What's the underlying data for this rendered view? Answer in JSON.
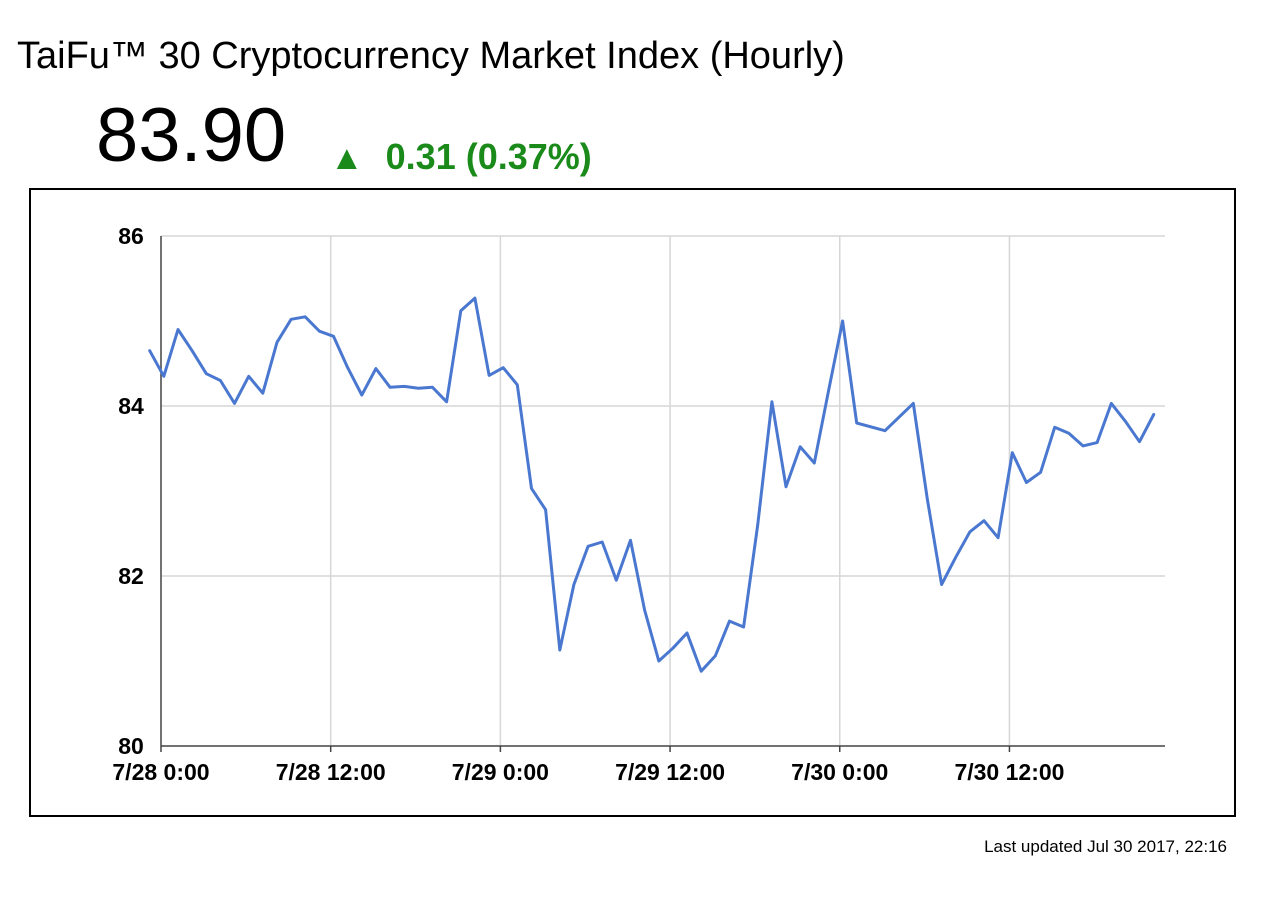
{
  "header": {
    "title": "TaiFu™ 30 Cryptocurrency Market Index (Hourly)",
    "price": "83.90",
    "change_arrow": "▲",
    "change_text": "0.31 (0.37%)",
    "change_color": "#1a8a1a"
  },
  "footer": {
    "last_updated": "Last updated Jul 30 2017, 22:16"
  },
  "colors": {
    "line": "#4a78d0",
    "grid": "#d6d6d6",
    "axis": "#444444"
  },
  "chart_data": {
    "type": "line",
    "title": "",
    "xlabel": "",
    "ylabel": "",
    "ylim": [
      80,
      86
    ],
    "yticks": [
      80,
      82,
      84,
      86
    ],
    "xlim_hours": [
      0,
      71
    ],
    "xticks": [
      {
        "hour": 0,
        "label": "7/28 0:00"
      },
      {
        "hour": 12,
        "label": "7/28 12:00"
      },
      {
        "hour": 24,
        "label": "7/29 0:00"
      },
      {
        "hour": 36,
        "label": "7/29 12:00"
      },
      {
        "hour": 48,
        "label": "7/30 0:00"
      },
      {
        "hour": 60,
        "label": "7/30 12:00"
      }
    ],
    "grid": true,
    "legend": "none",
    "series": [
      {
        "points": [
          [
            -0.8,
            84.65
          ],
          [
            0.2,
            84.35
          ],
          [
            1.2,
            84.9
          ],
          [
            2.2,
            84.65
          ],
          [
            3.2,
            84.38
          ],
          [
            4.2,
            84.3
          ],
          [
            5.2,
            84.03
          ],
          [
            6.2,
            84.35
          ],
          [
            7.2,
            84.15
          ],
          [
            8.2,
            84.75
          ],
          [
            9.2,
            85.02
          ],
          [
            10.2,
            85.05
          ],
          [
            11.2,
            84.88
          ],
          [
            12.2,
            84.82
          ],
          [
            13.2,
            84.45
          ],
          [
            14.2,
            84.13
          ],
          [
            15.2,
            84.44
          ],
          [
            16.2,
            84.22
          ],
          [
            17.2,
            84.23
          ],
          [
            18.2,
            84.21
          ],
          [
            19.2,
            84.22
          ],
          [
            20.2,
            84.05
          ],
          [
            21.2,
            85.12
          ],
          [
            22.2,
            85.27
          ],
          [
            23.2,
            84.36
          ],
          [
            24.2,
            84.45
          ],
          [
            25.2,
            84.25
          ],
          [
            26.2,
            83.03
          ],
          [
            27.2,
            82.78
          ],
          [
            28.2,
            81.13
          ],
          [
            29.2,
            81.9
          ],
          [
            30.2,
            82.35
          ],
          [
            31.2,
            82.4
          ],
          [
            32.2,
            81.95
          ],
          [
            33.2,
            82.42
          ],
          [
            34.2,
            81.6
          ],
          [
            35.2,
            81.0
          ],
          [
            36.2,
            81.15
          ],
          [
            37.2,
            81.33
          ],
          [
            38.2,
            80.88
          ],
          [
            39.2,
            81.06
          ],
          [
            40.2,
            81.47
          ],
          [
            41.2,
            81.4
          ],
          [
            42.2,
            82.6
          ],
          [
            43.2,
            84.05
          ],
          [
            44.2,
            83.05
          ],
          [
            45.2,
            83.52
          ],
          [
            46.2,
            83.33
          ],
          [
            47.2,
            84.17
          ],
          [
            48.2,
            85.0
          ],
          [
            49.2,
            83.8
          ],
          [
            51.2,
            83.71
          ],
          [
            53.2,
            84.03
          ],
          [
            54.2,
            82.9
          ],
          [
            55.2,
            81.9
          ],
          [
            56.2,
            82.22
          ],
          [
            57.2,
            82.52
          ],
          [
            58.2,
            82.65
          ],
          [
            59.2,
            82.45
          ],
          [
            60.2,
            83.45
          ],
          [
            61.2,
            83.1
          ],
          [
            62.2,
            83.22
          ],
          [
            63.2,
            83.75
          ],
          [
            64.2,
            83.68
          ],
          [
            65.2,
            83.53
          ],
          [
            66.2,
            83.57
          ],
          [
            67.2,
            84.03
          ],
          [
            68.2,
            83.82
          ],
          [
            69.2,
            83.58
          ],
          [
            70.2,
            83.9
          ]
        ]
      }
    ]
  }
}
